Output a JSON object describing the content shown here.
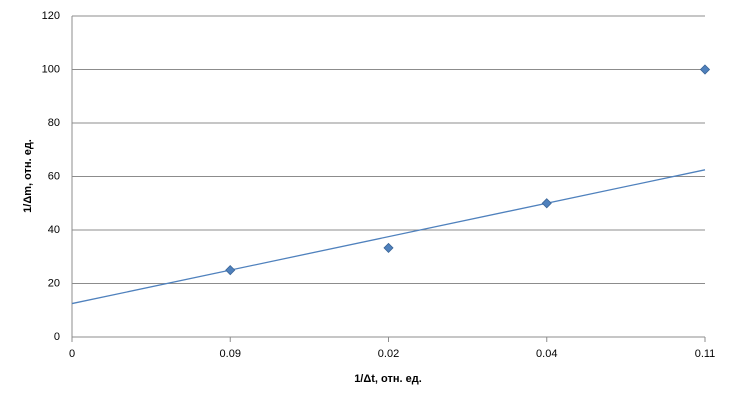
{
  "chart_data": {
    "type": "line",
    "x_label": "1/Δt, отн. ед.",
    "y_label": "1/Δm, отн. ед.",
    "categories": [
      "0",
      "0.09",
      "0.02",
      "0.04",
      "0.11"
    ],
    "series": [
      {
        "color": "#4f81bd",
        "values": [
          null,
          25,
          33.3,
          50,
          100
        ]
      }
    ],
    "trendline": {
      "color": "#4f81bd",
      "start": 12.5,
      "end": 62.5
    },
    "ylim": [
      0,
      120
    ],
    "yticks": [
      0,
      20,
      40,
      60,
      80,
      100,
      120
    ],
    "grid": true
  }
}
